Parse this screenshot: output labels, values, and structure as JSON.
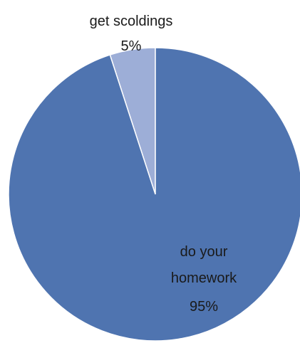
{
  "chart_data": {
    "type": "pie",
    "title": "",
    "slices": [
      {
        "label": "get scoldings",
        "value": 5,
        "value_label": "5%",
        "color": "#9daed7"
      },
      {
        "label": "do your homework",
        "value": 95,
        "value_label": "95%",
        "color": "#4f74b0"
      }
    ],
    "legend": "none",
    "start_angle_deg": 0,
    "direction": "counterclockwise"
  }
}
